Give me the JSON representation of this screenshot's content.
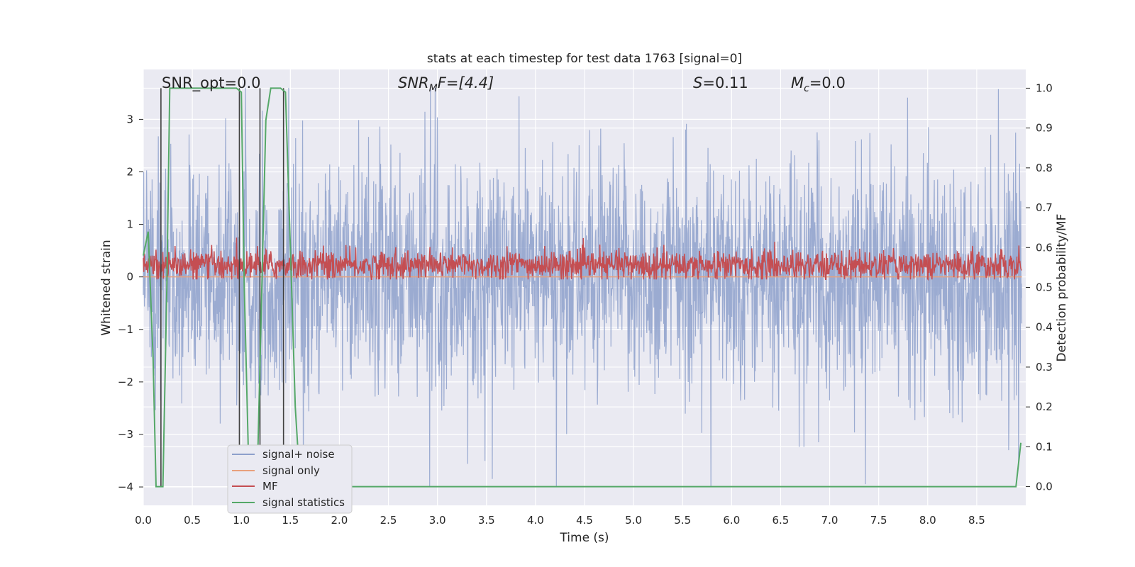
{
  "chart_data": {
    "type": "line",
    "title": "stats at each timestep for test data 1763 [signal=0]",
    "xlabel": "Time (s)",
    "ylabel": "Whitened strain",
    "y2label": "Detection probability/MF",
    "xlim": [
      0.0,
      9.0
    ],
    "ylim": [
      -4.35,
      3.95
    ],
    "y2lim": [
      -0.047,
      1.047
    ],
    "xticks": [
      "0.0",
      "0.5",
      "1.0",
      "1.5",
      "2.0",
      "2.5",
      "3.0",
      "3.5",
      "4.0",
      "4.5",
      "5.0",
      "5.5",
      "6.0",
      "6.5",
      "7.0",
      "7.5",
      "8.0",
      "8.5"
    ],
    "yticks": [
      "−4",
      "−3",
      "−2",
      "−1",
      "0",
      "1",
      "2",
      "3"
    ],
    "y2ticks": [
      "0.0",
      "0.1",
      "0.2",
      "0.3",
      "0.4",
      "0.5",
      "0.6",
      "0.7",
      "0.8",
      "0.9",
      "1.0"
    ],
    "grid": true,
    "legend_position": "lower-left",
    "annotations": {
      "snr_opt": "SNR_opt=0.0",
      "snr_mf_prefix": "SNR",
      "snr_mf_sub": "M",
      "snr_mf_suffix": "F=[4.4]",
      "s_prefix": "S",
      "s_suffix": "=0.11",
      "mc_prefix": "M",
      "mc_sub": "c",
      "mc_suffix": "=0.0"
    },
    "series": [
      {
        "name": "signal+ noise",
        "color": "#8da0cb",
        "description": "noisy whitened strain, approx. range -4.0 to 3.6, dense oscillation"
      },
      {
        "name": "signal only",
        "color": "#e8a07c",
        "values_constant": 0.0
      },
      {
        "name": "MF",
        "color": "#c44e52",
        "description": "matched filter output on right axis, approx. 0.52 to 0.62"
      },
      {
        "name": "signal statistics",
        "color": "#55a868",
        "x": [
          0.0,
          0.05,
          0.1,
          0.13,
          0.2,
          0.24,
          0.27,
          0.3,
          0.5,
          0.95,
          1.0,
          1.03,
          1.08,
          1.12,
          1.16,
          1.25,
          1.3,
          1.4,
          1.45,
          1.5,
          1.55,
          1.6,
          2.0,
          4.0,
          6.0,
          8.0,
          8.9,
          8.95
        ],
        "y": [
          0.58,
          0.64,
          0.32,
          0.0,
          0.0,
          0.5,
          1.0,
          1.0,
          1.0,
          1.0,
          0.99,
          0.5,
          0.0,
          0.0,
          0.0,
          0.92,
          1.0,
          1.0,
          0.99,
          0.6,
          0.2,
          0.0,
          0.0,
          0.0,
          0.0,
          0.0,
          0.0,
          0.11
        ]
      },
      {
        "name": "",
        "color": "#404040",
        "vlines_x": [
          0.18,
          0.98,
          1.19,
          1.43
        ],
        "description": "vertical markers"
      }
    ]
  }
}
